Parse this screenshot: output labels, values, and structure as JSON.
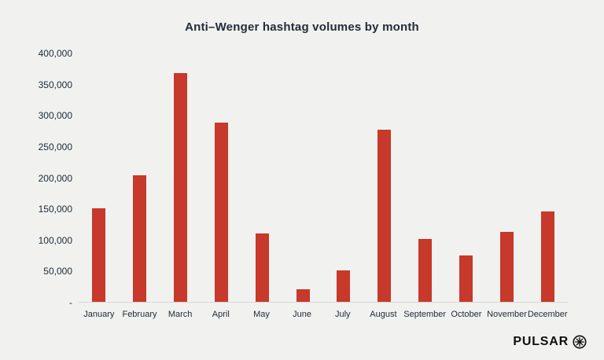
{
  "theme": {
    "background": "#f1f1ef",
    "text_color": "#212d39",
    "axis_line_color": "#d8d8d5",
    "logo_color": "#111111"
  },
  "branding": {
    "logo_text": "PULSAR",
    "logo_icon": "asterisk-circle-icon"
  },
  "chart_data": {
    "type": "bar",
    "title": "Anti–Wenger hashtag volumes by month",
    "categories": [
      "January",
      "February",
      "March",
      "April",
      "May",
      "June",
      "July",
      "August",
      "September",
      "October",
      "November",
      "December"
    ],
    "values": [
      152000,
      204000,
      368000,
      289000,
      111000,
      21000,
      52000,
      278000,
      102000,
      76000,
      114000,
      147000
    ],
    "xlabel": "",
    "ylabel": "",
    "ylim": [
      0,
      400000
    ],
    "ytick_step": 50000,
    "ytick_labels_bottom_up": [
      "-",
      "50,000",
      "100,000",
      "150,000",
      "200,000",
      "250,000",
      "300,000",
      "350,000",
      "400,000"
    ],
    "bar_color": "#c6392b",
    "grid": false,
    "legend": false
  }
}
